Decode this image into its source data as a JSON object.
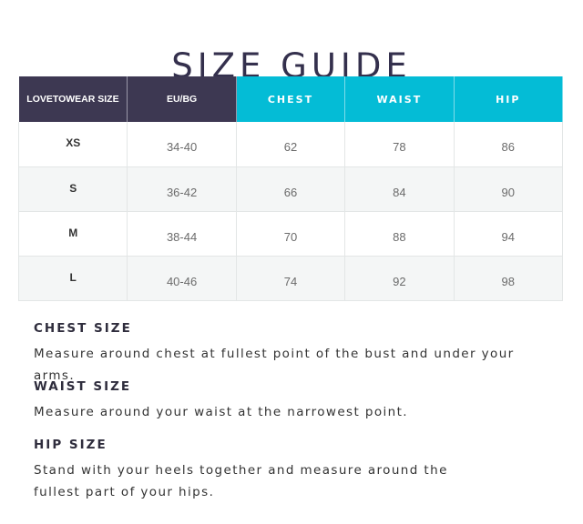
{
  "title": "SIZE GUIDE",
  "table": {
    "headers": [
      "LOVETOWEAR SIZE",
      "EU/BG",
      "CHEST",
      "WAIST",
      "HIP"
    ],
    "rows": [
      [
        "XS",
        "34-40",
        "62",
        "78",
        "86"
      ],
      [
        "S",
        "36-42",
        "66",
        "84",
        "90"
      ],
      [
        "M",
        "38-44",
        "70",
        "88",
        "94"
      ],
      [
        "L",
        "40-46",
        "74",
        "92",
        "98"
      ]
    ]
  },
  "sections": [
    {
      "heading": "CHEST SIZE",
      "text": "Measure around chest at fullest point of the bust and under your arms."
    },
    {
      "heading": "WAIST SIZE",
      "text": "Measure around your waist at the narrowest point."
    },
    {
      "heading": "HIP SIZE",
      "text": "Stand with your heels together and measure around the fullest part of your hips."
    }
  ],
  "colors": {
    "header_dark": "#3d3852",
    "header_cyan": "#04bcd6",
    "title": "#34304d"
  }
}
